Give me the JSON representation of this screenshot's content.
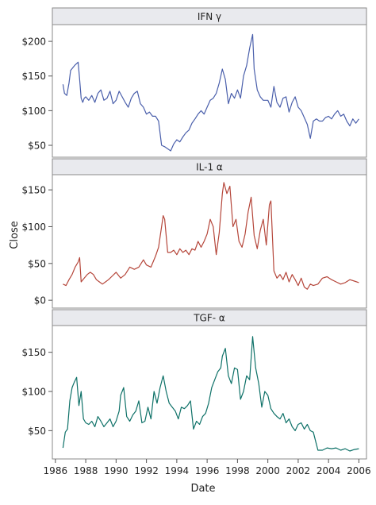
{
  "chart_data": {
    "type": "line",
    "ylabel": "Close",
    "xlabel": "Date",
    "xlim": [
      1985.8,
      2006.5
    ],
    "x_ticks": [
      1986,
      1988,
      1990,
      1992,
      1994,
      1996,
      1998,
      2000,
      2002,
      2004,
      2006
    ],
    "panels": [
      {
        "title": "IFN γ",
        "color": "#4a5fab",
        "ylim": [
          42,
          215
        ],
        "y_ticks": [
          50,
          100,
          150,
          200
        ],
        "y_tick_labels": [
          "$50",
          "$100",
          "$150",
          "$200"
        ],
        "x": [
          1986.5,
          1986.6,
          1986.75,
          1986.9,
          1987.0,
          1987.15,
          1987.3,
          1987.5,
          1987.6,
          1987.7,
          1987.8,
          1987.9,
          1988.0,
          1988.2,
          1988.4,
          1988.6,
          1988.8,
          1989.0,
          1989.2,
          1989.4,
          1989.6,
          1989.8,
          1990.0,
          1990.2,
          1990.4,
          1990.6,
          1990.8,
          1991.0,
          1991.2,
          1991.4,
          1991.6,
          1991.8,
          1992.0,
          1992.2,
          1992.4,
          1992.6,
          1992.8,
          1993.0,
          1993.2,
          1993.4,
          1993.6,
          1993.8,
          1994.0,
          1994.2,
          1994.4,
          1994.6,
          1994.8,
          1995.0,
          1995.2,
          1995.4,
          1995.6,
          1995.8,
          1996.0,
          1996.2,
          1996.4,
          1996.6,
          1996.8,
          1997.0,
          1997.2,
          1997.4,
          1997.6,
          1997.8,
          1998.0,
          1998.2,
          1998.4,
          1998.6,
          1998.8,
          1999.0,
          1999.1,
          1999.3,
          1999.5,
          1999.7,
          2000.0,
          2000.2,
          2000.4,
          2000.6,
          2000.8,
          2001.0,
          2001.2,
          2001.4,
          2001.6,
          2001.8,
          2002.0,
          2002.2,
          2002.4,
          2002.6,
          2002.8,
          2003.0,
          2003.2,
          2003.4,
          2003.6,
          2003.8,
          2004.0,
          2004.2,
          2004.4,
          2004.6,
          2004.8,
          2005.0,
          2005.2,
          2005.4,
          2005.6,
          2005.8,
          2006.0
        ],
        "y": [
          138,
          125,
          122,
          140,
          158,
          162,
          166,
          170,
          145,
          118,
          112,
          118,
          120,
          115,
          122,
          112,
          125,
          130,
          115,
          118,
          128,
          110,
          115,
          128,
          120,
          112,
          105,
          118,
          125,
          128,
          110,
          105,
          95,
          98,
          92,
          92,
          85,
          50,
          48,
          45,
          42,
          52,
          58,
          55,
          62,
          68,
          72,
          82,
          88,
          95,
          100,
          95,
          105,
          115,
          118,
          125,
          140,
          160,
          145,
          110,
          125,
          118,
          130,
          118,
          150,
          165,
          190,
          210,
          160,
          130,
          120,
          115,
          115,
          105,
          135,
          112,
          105,
          118,
          120,
          98,
          112,
          120,
          105,
          100,
          90,
          80,
          60,
          85,
          88,
          85,
          85,
          90,
          92,
          88,
          95,
          100,
          92,
          95,
          85,
          78,
          88,
          82,
          88
        ]
      },
      {
        "title": "IL-1 α",
        "color": "#b5463a",
        "ylim": [
          -2,
          162
        ],
        "y_ticks": [
          0,
          50,
          100,
          150
        ],
        "y_tick_labels": [
          "$0",
          "$50",
          "$100",
          "$150"
        ],
        "x": [
          1986.5,
          1986.7,
          1986.9,
          1987.1,
          1987.3,
          1987.5,
          1987.6,
          1987.7,
          1987.9,
          1988.1,
          1988.3,
          1988.5,
          1988.7,
          1988.9,
          1989.1,
          1989.3,
          1989.5,
          1989.7,
          1990.0,
          1990.3,
          1990.6,
          1990.9,
          1991.2,
          1991.5,
          1991.8,
          1992.0,
          1992.3,
          1992.6,
          1992.8,
          1993.0,
          1993.1,
          1993.2,
          1993.4,
          1993.6,
          1993.8,
          1994.0,
          1994.2,
          1994.4,
          1994.6,
          1994.8,
          1995.0,
          1995.2,
          1995.4,
          1995.6,
          1995.8,
          1996.0,
          1996.2,
          1996.4,
          1996.6,
          1996.8,
          1997.0,
          1997.1,
          1997.3,
          1997.5,
          1997.7,
          1997.9,
          1998.1,
          1998.3,
          1998.5,
          1998.7,
          1998.9,
          1999.1,
          1999.3,
          1999.5,
          1999.7,
          1999.9,
          2000.1,
          2000.2,
          2000.4,
          2000.6,
          2000.8,
          2001.0,
          2001.2,
          2001.4,
          2001.6,
          2001.8,
          2002.0,
          2002.2,
          2002.4,
          2002.6,
          2002.8,
          2003.0,
          2003.3,
          2003.6,
          2003.9,
          2004.2,
          2004.5,
          2004.8,
          2005.1,
          2005.4,
          2005.7,
          2006.0
        ],
        "y": [
          22,
          20,
          28,
          35,
          45,
          52,
          58,
          25,
          30,
          35,
          38,
          35,
          28,
          25,
          22,
          25,
          28,
          32,
          38,
          30,
          35,
          45,
          42,
          45,
          55,
          48,
          45,
          60,
          72,
          100,
          115,
          110,
          65,
          65,
          68,
          62,
          70,
          65,
          68,
          62,
          70,
          68,
          80,
          72,
          80,
          90,
          110,
          100,
          62,
          92,
          145,
          160,
          145,
          155,
          100,
          110,
          80,
          72,
          90,
          120,
          140,
          88,
          70,
          95,
          110,
          75,
          130,
          135,
          40,
          30,
          35,
          28,
          38,
          25,
          35,
          28,
          20,
          30,
          18,
          15,
          22,
          20,
          22,
          30,
          32,
          28,
          25,
          22,
          24,
          28,
          26,
          24
        ]
      },
      {
        "title": "TGF- α",
        "color": "#0e7168",
        "ylim": [
          22,
          176
        ],
        "y_ticks": [
          50,
          100,
          150
        ],
        "y_tick_labels": [
          "$50",
          "$100",
          "$150"
        ],
        "x": [
          1986.5,
          1986.65,
          1986.8,
          1986.95,
          1987.1,
          1987.25,
          1987.4,
          1987.55,
          1987.7,
          1987.85,
          1988.0,
          1988.2,
          1988.4,
          1988.6,
          1988.8,
          1989.0,
          1989.2,
          1989.4,
          1989.6,
          1989.8,
          1990.0,
          1990.2,
          1990.3,
          1990.5,
          1990.7,
          1990.9,
          1991.1,
          1991.3,
          1991.5,
          1991.7,
          1991.9,
          1992.1,
          1992.3,
          1992.5,
          1992.7,
          1992.9,
          1993.1,
          1993.3,
          1993.5,
          1993.7,
          1993.9,
          1994.1,
          1994.3,
          1994.5,
          1994.7,
          1994.9,
          1995.1,
          1995.3,
          1995.5,
          1995.7,
          1995.9,
          1996.1,
          1996.3,
          1996.5,
          1996.7,
          1996.9,
          1997.0,
          1997.2,
          1997.4,
          1997.6,
          1997.8,
          1998.0,
          1998.2,
          1998.4,
          1998.6,
          1998.8,
          1999.0,
          1999.2,
          1999.4,
          1999.6,
          1999.8,
          2000.0,
          2000.2,
          2000.4,
          2000.6,
          2000.8,
          2001.0,
          2001.2,
          2001.4,
          2001.6,
          2001.8,
          2002.0,
          2002.2,
          2002.4,
          2002.6,
          2002.8,
          2003.0,
          2003.1,
          2003.3,
          2003.6,
          2003.9,
          2004.2,
          2004.5,
          2004.8,
          2005.1,
          2005.4,
          2005.7,
          2006.0
        ],
        "y": [
          28,
          48,
          52,
          88,
          105,
          112,
          118,
          82,
          100,
          65,
          60,
          58,
          62,
          55,
          68,
          62,
          55,
          60,
          65,
          55,
          62,
          75,
          95,
          105,
          68,
          62,
          70,
          75,
          88,
          60,
          62,
          80,
          65,
          100,
          85,
          105,
          120,
          100,
          85,
          80,
          75,
          65,
          80,
          78,
          82,
          88,
          52,
          62,
          58,
          68,
          72,
          85,
          105,
          115,
          125,
          130,
          145,
          155,
          120,
          110,
          130,
          128,
          90,
          100,
          120,
          115,
          170,
          130,
          110,
          80,
          100,
          95,
          78,
          72,
          68,
          65,
          72,
          60,
          65,
          55,
          50,
          58,
          60,
          52,
          58,
          50,
          48,
          40,
          25,
          25,
          28,
          27,
          28,
          25,
          27,
          24,
          26,
          27
        ]
      }
    ]
  }
}
